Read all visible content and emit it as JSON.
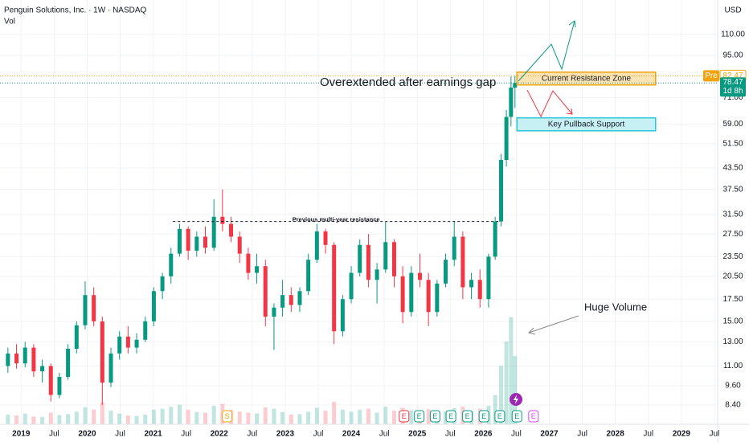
{
  "chart_data": {
    "type": "candlestick",
    "title": "Penguin Solutions, Inc. · 1W · NASDAQ",
    "volume_label": "Vol",
    "currency": "USD",
    "log_scale": true,
    "up_color": "#089981",
    "down_color": "#f23645",
    "x": [
      2018.8,
      2018.93,
      2019.06,
      2019.19,
      2019.32,
      2019.45,
      2019.58,
      2019.71,
      2019.84,
      2019.97,
      2020.1,
      2020.23,
      2020.36,
      2020.49,
      2020.62,
      2020.75,
      2020.88,
      2021.01,
      2021.14,
      2021.27,
      2021.4,
      2021.53,
      2021.66,
      2021.79,
      2021.92,
      2022.05,
      2022.18,
      2022.31,
      2022.44,
      2022.57,
      2022.7,
      2022.83,
      2022.96,
      2023.09,
      2023.22,
      2023.35,
      2023.48,
      2023.61,
      2023.74,
      2023.87,
      2024.0,
      2024.13,
      2024.26,
      2024.39,
      2024.52,
      2024.65,
      2024.78,
      2024.91,
      2025.04,
      2025.17,
      2025.3,
      2025.43,
      2025.56,
      2025.69,
      2025.82,
      2025.95,
      2026.08,
      2026.18,
      2026.27,
      2026.35,
      2026.42,
      2026.48
    ],
    "open": [
      11,
      12,
      11.2,
      12.5,
      10.6,
      11,
      9,
      10.2,
      12.4,
      14.6,
      18,
      15,
      9.8,
      12,
      13.5,
      12.5,
      13.2,
      15,
      18.5,
      20.5,
      24,
      28.5,
      24.5,
      27,
      25,
      31,
      29.5,
      27,
      24,
      21,
      22,
      15.5,
      16.5,
      18,
      16.8,
      18.5,
      23,
      28,
      25.5,
      14,
      17.5,
      21,
      25.5,
      20,
      21.5,
      26,
      20.5,
      16,
      21,
      20,
      16,
      19.5,
      23,
      27,
      19,
      20,
      17.5,
      23.5,
      30,
      46,
      62,
      76
    ],
    "high": [
      12.5,
      12.8,
      13,
      12.8,
      11.5,
      11.2,
      10.5,
      12.8,
      15,
      19.8,
      19,
      15.5,
      12.5,
      14,
      14.5,
      13.8,
      15.5,
      19,
      21,
      25,
      29.5,
      29,
      28,
      29,
      35,
      37.5,
      31,
      28,
      25,
      24,
      23,
      17,
      20,
      19,
      19,
      24,
      29.5,
      28.5,
      26,
      18,
      22,
      26.5,
      27.5,
      22.5,
      30,
      26.5,
      22,
      22,
      24,
      21,
      20,
      24,
      30,
      28,
      21,
      21.5,
      24,
      31,
      48,
      65,
      82,
      82.5
    ],
    "low": [
      10.5,
      10.8,
      10.9,
      10.2,
      9.8,
      8.6,
      8.8,
      10,
      12,
      14.2,
      14.5,
      8.4,
      9.5,
      11.5,
      12,
      12,
      13,
      14.5,
      17.5,
      19.5,
      23.5,
      23,
      23.5,
      24,
      24.5,
      28,
      26,
      22.5,
      20,
      19.5,
      14.5,
      12.3,
      15.5,
      16,
      16,
      18,
      22.5,
      24,
      12.8,
      13.5,
      17,
      20.5,
      19,
      17,
      21,
      19,
      14.8,
      15.5,
      19,
      14.5,
      15.5,
      19,
      22,
      17.5,
      17.5,
      16.5,
      16.5,
      23,
      29,
      44,
      58,
      66
    ],
    "close": [
      12,
      11.2,
      12.5,
      10.6,
      11,
      9,
      10.2,
      12.4,
      14.6,
      18,
      15,
      9.8,
      12,
      13.5,
      12.5,
      13.2,
      15,
      18.5,
      20.5,
      24,
      28.5,
      24.5,
      27,
      25,
      31,
      29.5,
      27,
      24,
      21,
      22,
      15.5,
      16.5,
      18,
      16.8,
      18.5,
      23,
      28,
      25.5,
      14,
      17.5,
      21,
      25.5,
      20,
      21.5,
      26,
      20.5,
      16,
      21,
      20,
      16,
      19.5,
      23,
      27,
      19,
      20,
      17.5,
      23.5,
      30,
      46,
      62,
      76,
      78.47
    ],
    "volume": [
      2,
      1.8,
      2.2,
      1.6,
      1.5,
      2.4,
      1.9,
      2.1,
      2.6,
      3.5,
      3,
      4.5,
      2.8,
      2.2,
      1.8,
      1.7,
      2,
      3,
      3.2,
      3.6,
      4,
      3,
      2.5,
      2.4,
      3.8,
      4.2,
      3,
      2.6,
      2.4,
      2.2,
      3.5,
      3.2,
      2.5,
      2,
      2.1,
      2.6,
      3.4,
      2.8,
      4.6,
      3,
      2.6,
      3,
      3.2,
      2.4,
      3.6,
      2.8,
      3.4,
      2.9,
      2.6,
      3.1,
      2.5,
      2.7,
      3.3,
      3.6,
      2.8,
      3.2,
      3.8,
      6,
      12,
      17,
      22,
      14
    ],
    "xlim": [
      2018.68,
      2029.55
    ],
    "ylim": [
      7.34,
      139.6
    ],
    "volume_ylim": [
      0,
      33
    ],
    "xticks": [
      2019,
      {
        "value": 2019.5,
        "label": "Jul"
      },
      2020,
      {
        "value": 2020.5,
        "label": "Jul"
      },
      2021,
      {
        "value": 2021.5,
        "label": "Jul"
      },
      2022,
      {
        "value": 2022.5,
        "label": "Jul"
      },
      2023,
      {
        "value": 2023.5,
        "label": "Jul"
      },
      2024,
      {
        "value": 2024.5,
        "label": "Jul"
      },
      2025,
      {
        "value": 2025.5,
        "label": "Jul"
      },
      2026,
      {
        "value": 2026.5,
        "label": "Jul"
      },
      2027,
      {
        "value": 2027.5,
        "label": "Jul"
      },
      2028,
      {
        "value": 2028.5,
        "label": "Jul"
      },
      2029,
      {
        "value": 2029.5,
        "label": "Jul"
      }
    ],
    "yticks": [
      {
        "value": 8.4,
        "label": "8.40"
      },
      {
        "value": 9.6,
        "label": "9.60"
      },
      {
        "value": 11,
        "label": "11.00"
      },
      {
        "value": 13,
        "label": "13.00"
      },
      {
        "value": 15,
        "label": "15.00"
      },
      {
        "value": 17.5,
        "label": "17.50"
      },
      {
        "value": 20.5,
        "label": "20.50"
      },
      {
        "value": 23.5,
        "label": "23.50"
      },
      {
        "value": 27.5,
        "label": "27.50"
      },
      {
        "value": 31.5,
        "label": "31.50"
      },
      {
        "value": 37.5,
        "label": "37.50"
      },
      {
        "value": 43.5,
        "label": "43.50"
      },
      {
        "value": 51.5,
        "label": "51.50"
      },
      {
        "value": 59,
        "label": "59.00"
      },
      {
        "value": 71,
        "label": "71.00"
      },
      {
        "value": 95,
        "label": "95.00"
      },
      {
        "value": 110,
        "label": "110.00"
      }
    ],
    "pre_label": "Pre",
    "pre_price": 82.47,
    "last_price": 78.47,
    "countdown": "1d 8h",
    "zones": [
      {
        "label": "Current Resistance Zone",
        "low": 77.4,
        "high": 84.6,
        "x": [
          2026.51,
          2028.61
        ],
        "color": "#f0a30a",
        "fill": "#fbe3b6"
      },
      {
        "label": "Key Pullback Support",
        "low": 56.3,
        "high": 61.6,
        "x": [
          2026.51,
          2028.61
        ],
        "color": "#26c6da",
        "fill": "#c7f0f5"
      }
    ],
    "resistance_line": {
      "label": "Previous multi-year resistance",
      "value": 30,
      "x": [
        2021.3,
        2026.24
      ]
    },
    "annotations": [
      "Overextended after earnings gap",
      "Huge Volume"
    ],
    "events": [
      {
        "x": 2022.12,
        "label": "S",
        "color": "#f0a30a"
      },
      {
        "x": 2024.8,
        "label": "E",
        "color": "#f23645"
      },
      {
        "x": 2025.03,
        "label": "E",
        "color": "#089981"
      },
      {
        "x": 2025.27,
        "label": "E",
        "color": "#089981"
      },
      {
        "x": 2025.51,
        "label": "E",
        "color": "#089981"
      },
      {
        "x": 2025.76,
        "label": "E",
        "color": "#089981"
      },
      {
        "x": 2026.01,
        "label": "E",
        "color": "#089981"
      },
      {
        "x": 2026.25,
        "label": "E",
        "color": "#089981"
      },
      {
        "x": 2026.51,
        "label": "E",
        "color": "#089981"
      },
      {
        "x": 2026.76,
        "label": "E",
        "color": "#e040fb"
      }
    ]
  }
}
